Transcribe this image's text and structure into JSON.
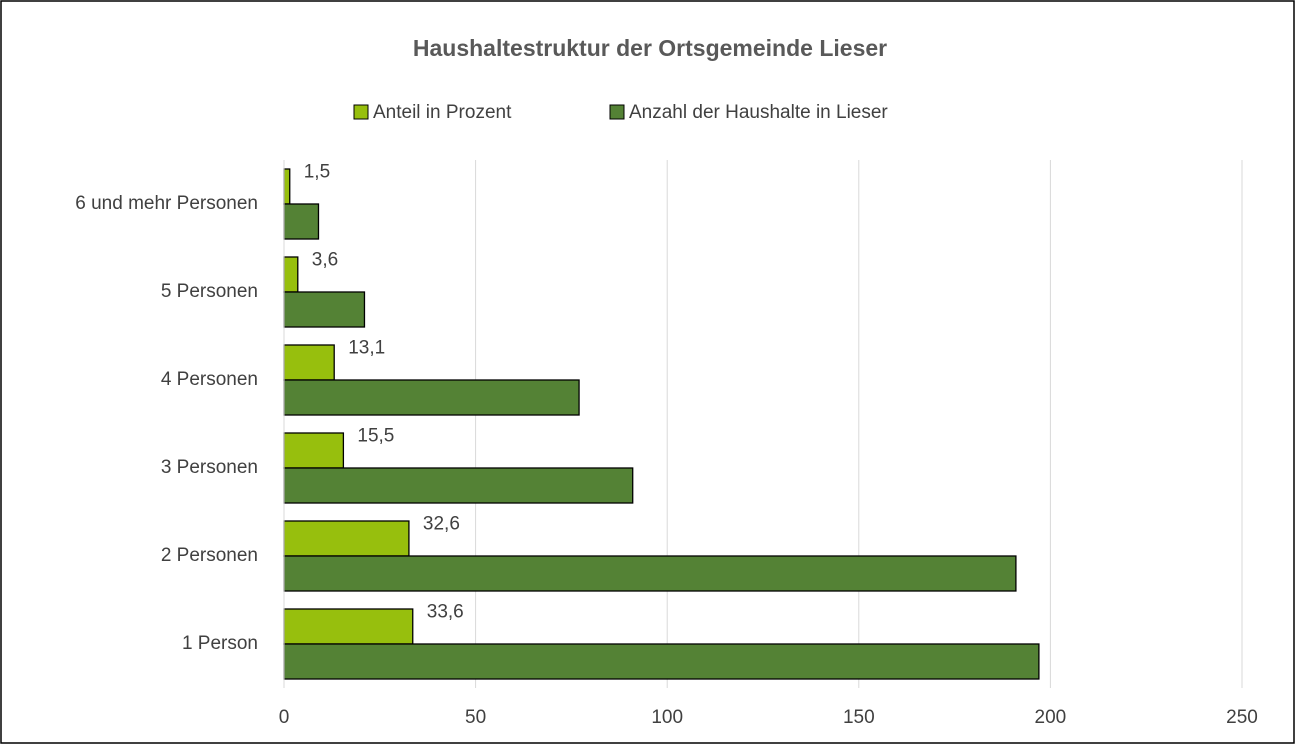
{
  "chart_data": {
    "type": "barh",
    "title": "Haushaltestruktur der Ortsgemeinde Lieser",
    "categories": [
      "1 Person",
      "2 Personen",
      "3 Personen",
      "4 Personen",
      "5 Personen",
      "6 und mehr Personen"
    ],
    "series": [
      {
        "name": "Anteil in Prozent",
        "color": "#97bf0d",
        "values": [
          33.6,
          32.6,
          15.5,
          13.1,
          3.6,
          1.5
        ],
        "value_labels": [
          "33,6",
          "32,6",
          "15,5",
          "13,1",
          "3,6",
          "1,5"
        ]
      },
      {
        "name": "Anzahl der Haushalte in Lieser",
        "color": "#548235",
        "values": [
          197,
          191,
          91,
          77,
          21,
          9
        ]
      }
    ],
    "xlim": [
      0,
      250
    ],
    "xticks": [
      0,
      50,
      100,
      150,
      200,
      250
    ],
    "grid": true,
    "legend": "top"
  }
}
